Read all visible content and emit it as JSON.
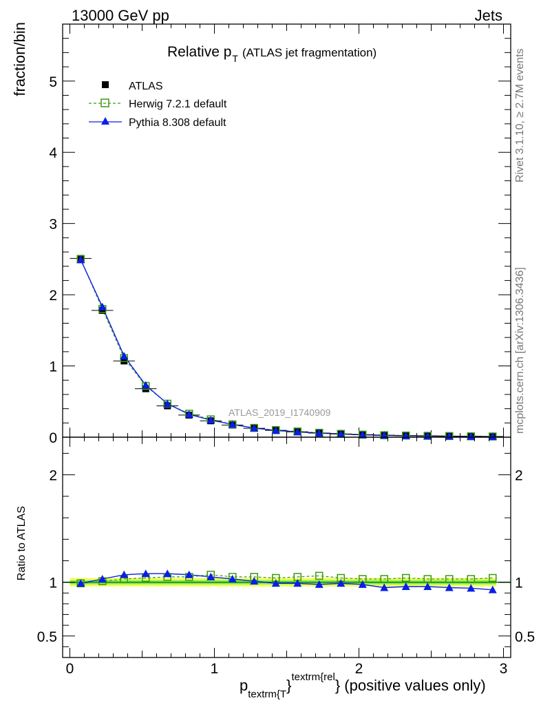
{
  "header": {
    "left": "13000 GeV pp",
    "right": "Jets"
  },
  "side": {
    "rivet": "Rivet 3.1.10, ≥ 2.7M events",
    "mcplots": "mcplots.cern.ch [arXiv:1306.3436]"
  },
  "watermark": "ATLAS_2019_I1740909",
  "colors": {
    "data": "#000000",
    "herwig": "#3a9a0e",
    "pythia": "#0a1ee6",
    "band_inner": "#4ce04c",
    "band_outer": "#f0ff60"
  },
  "chart_data": [
    {
      "type": "line",
      "title_main": "Relative p",
      "title_sub": "T",
      "title_rest": "(ATLAS jet fragmentation)",
      "ylabel": "fraction/bin",
      "xlim": [
        -0.05,
        3.05
      ],
      "ylim": [
        0,
        5.8
      ],
      "yticks": [
        0,
        1,
        2,
        3,
        4,
        5
      ],
      "x": [
        0.075,
        0.225,
        0.375,
        0.525,
        0.675,
        0.825,
        0.975,
        1.125,
        1.275,
        1.425,
        1.575,
        1.725,
        1.875,
        2.025,
        2.175,
        2.325,
        2.475,
        2.625,
        2.775,
        2.925
      ],
      "series": [
        {
          "name": "ATLAS",
          "style": "points",
          "values": [
            2.51,
            1.78,
            1.07,
            0.68,
            0.44,
            0.31,
            0.23,
            0.17,
            0.125,
            0.095,
            0.075,
            0.058,
            0.045,
            0.035,
            0.027,
            0.022,
            0.018,
            0.015,
            0.012,
            0.01
          ]
        },
        {
          "name": "Herwig 7.2.1 default",
          "style": "dashed-open-square",
          "values": [
            2.5,
            1.8,
            1.11,
            0.72,
            0.47,
            0.33,
            0.25,
            0.18,
            0.13,
            0.1,
            0.08,
            0.062,
            0.047,
            0.036,
            0.028,
            0.023,
            0.019,
            0.016,
            0.012,
            0.01
          ]
        },
        {
          "name": "Pythia 8.308 default",
          "style": "solid-triangle",
          "values": [
            2.49,
            1.83,
            1.14,
            0.73,
            0.47,
            0.32,
            0.24,
            0.18,
            0.128,
            0.094,
            0.074,
            0.057,
            0.045,
            0.034,
            0.026,
            0.021,
            0.017,
            0.014,
            0.011,
            0.009
          ]
        }
      ]
    },
    {
      "type": "line",
      "ylabel": "Ratio to ATLAS",
      "xlabel_main": "p",
      "xlabel_sub": "textrm{T",
      "xlabel_brace": "}",
      "xlabel_sup": "textrm{rel",
      "xlabel_rest": "} (positive values only)",
      "xlim": [
        -0.05,
        3.05
      ],
      "ylim": [
        0.3,
        2.35
      ],
      "xticks": [
        0,
        1,
        2,
        3
      ],
      "yticks": [
        0.5,
        1,
        2
      ],
      "x": [
        0.075,
        0.225,
        0.375,
        0.525,
        0.675,
        0.825,
        0.975,
        1.125,
        1.275,
        1.425,
        1.575,
        1.725,
        1.875,
        2.025,
        2.175,
        2.325,
        2.475,
        2.625,
        2.775,
        2.925
      ],
      "band_inner": 0.02,
      "band_outer": 0.04,
      "series": [
        {
          "name": "Herwig 7.2.1 default",
          "values": [
            0.99,
            1.01,
            1.03,
            1.04,
            1.05,
            1.05,
            1.07,
            1.05,
            1.05,
            1.04,
            1.05,
            1.06,
            1.04,
            1.03,
            1.03,
            1.04,
            1.03,
            1.03,
            1.03,
            1.04
          ]
        },
        {
          "name": "Pythia 8.308 default",
          "values": [
            0.99,
            1.03,
            1.07,
            1.08,
            1.08,
            1.07,
            1.05,
            1.03,
            1.01,
            0.99,
            0.99,
            0.98,
            0.99,
            0.98,
            0.95,
            0.96,
            0.96,
            0.95,
            0.945,
            0.93
          ]
        }
      ]
    }
  ]
}
